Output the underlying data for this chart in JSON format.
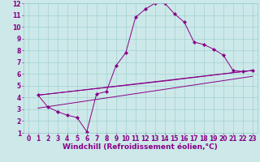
{
  "xlabel": "Windchill (Refroidissement éolien,°C)",
  "bg_color": "#cce8e8",
  "line_color": "#880088",
  "xlim": [
    -0.5,
    23.5
  ],
  "ylim": [
    1,
    12
  ],
  "xticks": [
    0,
    1,
    2,
    3,
    4,
    5,
    6,
    7,
    8,
    9,
    10,
    11,
    12,
    13,
    14,
    15,
    16,
    17,
    18,
    19,
    20,
    21,
    22,
    23
  ],
  "yticks": [
    1,
    2,
    3,
    4,
    5,
    6,
    7,
    8,
    9,
    10,
    11,
    12
  ],
  "line1_x": [
    1,
    2,
    3,
    4,
    5,
    6,
    7,
    8,
    9,
    10,
    11,
    12,
    13,
    14,
    15,
    16,
    17,
    18,
    19,
    20,
    21,
    22,
    23
  ],
  "line1_y": [
    4.2,
    3.2,
    2.8,
    2.5,
    2.3,
    1.1,
    4.3,
    4.5,
    6.7,
    7.8,
    10.8,
    11.5,
    12.0,
    12.0,
    11.1,
    10.4,
    8.7,
    8.5,
    8.1,
    7.6,
    6.3,
    6.2,
    6.3
  ],
  "line2_x": [
    1,
    23
  ],
  "line2_y": [
    4.2,
    6.3
  ],
  "line3_x": [
    1,
    14,
    23
  ],
  "line3_y": [
    4.2,
    5.4,
    6.3
  ],
  "line4_x": [
    1,
    23
  ],
  "line4_y": [
    3.1,
    5.8
  ],
  "grid_color": "#99cccc",
  "tick_fontsize": 5.5,
  "xlabel_fontsize": 6.5
}
